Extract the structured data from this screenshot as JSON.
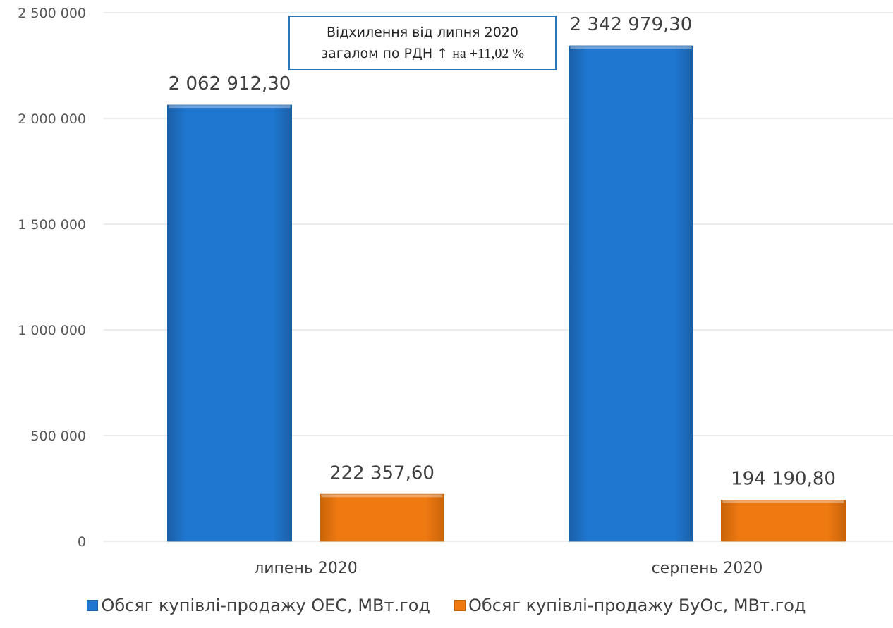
{
  "chart_data": {
    "type": "bar",
    "title": "",
    "xlabel": "",
    "ylabel": "",
    "categories": [
      "липень 2020",
      "серпень 2020"
    ],
    "series": [
      {
        "name": "Обсяг купівлі-продажу ОЕС, МВт.год",
        "color": "#1f77d0",
        "values": [
          2062912.3,
          2342979.3
        ],
        "labels": [
          "2 062 912,30",
          "2 342 979,30"
        ]
      },
      {
        "name": "Обсяг купівлі-продажу БуОс, МВт.год",
        "color": "#f07a12",
        "values": [
          222357.6,
          194190.8
        ],
        "labels": [
          "222 357,60",
          "194 190,80"
        ]
      }
    ],
    "ylim": [
      0,
      2500000
    ],
    "yticks": [
      0,
      500000,
      1000000,
      1500000,
      2000000,
      2500000
    ],
    "ytick_labels": [
      "0",
      "500 000",
      "1 000 000",
      "1 500 000",
      "2 000 000",
      "2 500 000"
    ],
    "grid": true,
    "legend_position": "bottom"
  },
  "annotation": {
    "line1": "Відхилення від липня 2020",
    "line2_prefix": "загалом по РДН ↑",
    "line2_value": "на +11,02 %"
  }
}
